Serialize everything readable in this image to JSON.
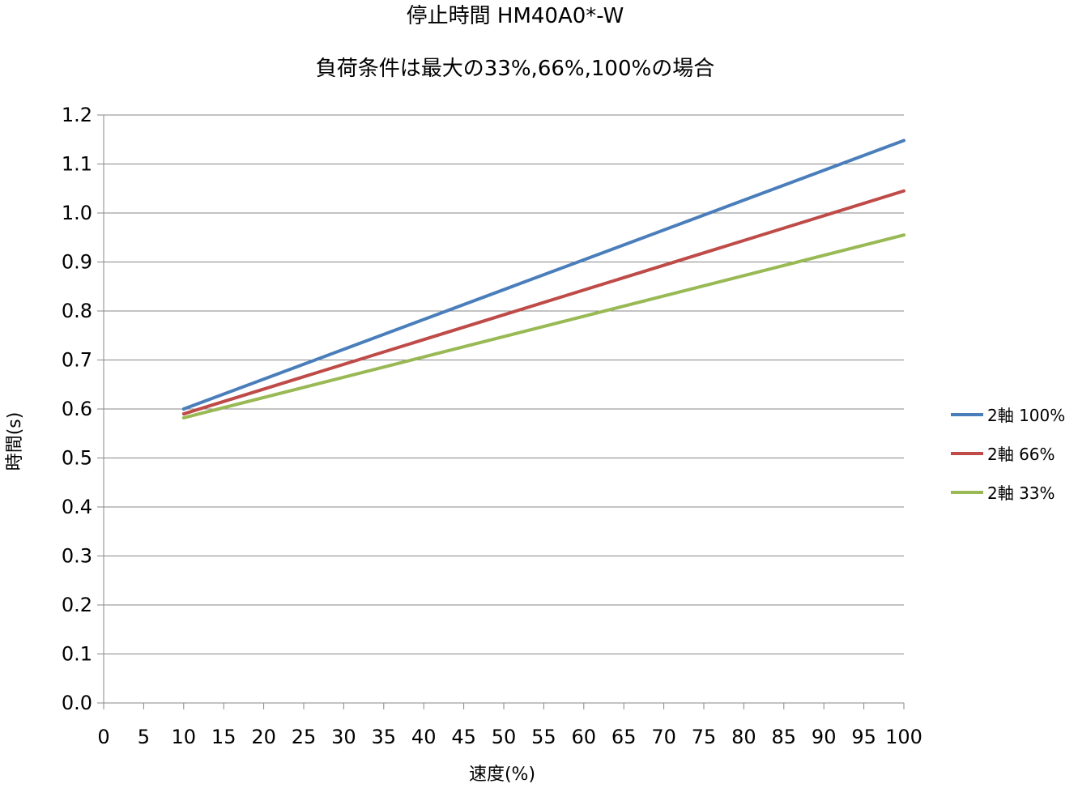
{
  "chart_data": {
    "type": "line",
    "title": "停止時間 HM40A0*-W",
    "subtitle": "負荷条件は最大の33%,66%,100%の場合",
    "xlabel": "速度(%)",
    "ylabel": "時間(s)",
    "xlim": [
      0,
      100
    ],
    "ylim": [
      0,
      1.2
    ],
    "xticks": [
      "0",
      "5",
      "10",
      "15",
      "20",
      "25",
      "30",
      "35",
      "40",
      "45",
      "50",
      "55",
      "60",
      "65",
      "70",
      "75",
      "80",
      "85",
      "90",
      "95",
      "100"
    ],
    "yticks": [
      "0.0",
      "0.1",
      "0.2",
      "0.3",
      "0.4",
      "0.5",
      "0.6",
      "0.7",
      "0.8",
      "0.9",
      "1.0",
      "1.1",
      "1.2"
    ],
    "grid": "horizontal",
    "legend_position": "right",
    "series": [
      {
        "name": "2軸 100%",
        "color": "#4A7EBB",
        "x": [
          10,
          100
        ],
        "y": [
          0.6,
          1.148
        ]
      },
      {
        "name": "2軸 66%",
        "color": "#BE4B48",
        "x": [
          10,
          100
        ],
        "y": [
          0.59,
          1.045
        ]
      },
      {
        "name": "2軸 33%",
        "color": "#98B954",
        "x": [
          10,
          100
        ],
        "y": [
          0.582,
          0.955
        ]
      }
    ]
  }
}
